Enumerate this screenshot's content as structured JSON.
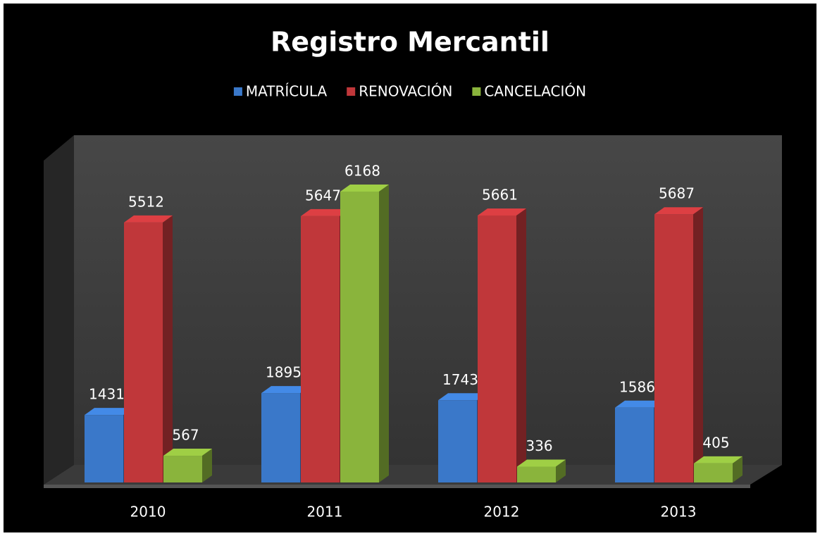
{
  "chart_data": {
    "type": "bar3d",
    "title": "Registro Mercantil",
    "categories": [
      "2010",
      "2011",
      "2012",
      "2013"
    ],
    "series": [
      {
        "name": "MATRÍCULA",
        "color": "#3a78c9",
        "values": [
          1431,
          1895,
          1743,
          1586
        ]
      },
      {
        "name": "RENOVACIÓN",
        "color": "#c0373a",
        "values": [
          5512,
          5647,
          5661,
          5687
        ]
      },
      {
        "name": "CANCELACIÓN",
        "color": "#8ab43c",
        "values": [
          567,
          6168,
          336,
          405
        ]
      }
    ],
    "legend": "top"
  }
}
